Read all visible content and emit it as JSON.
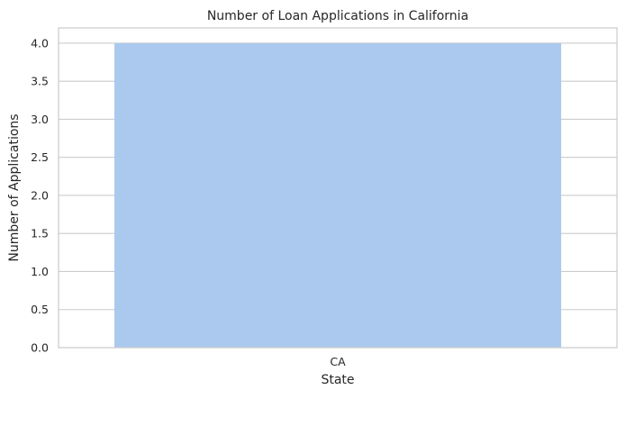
{
  "chart_data": {
    "type": "bar",
    "title": "Number of Loan Applications in California",
    "xlabel": "State",
    "ylabel": "Number of Applications",
    "categories": [
      "CA"
    ],
    "values": [
      4.0
    ],
    "ylim": [
      0,
      4.2
    ],
    "yticks": [
      "0.0",
      "0.5",
      "1.0",
      "1.5",
      "2.0",
      "2.5",
      "3.0",
      "3.5",
      "4.0"
    ],
    "grid": true,
    "bar_color": "#abc9ee",
    "grid_color": "#cccccc",
    "frame_color": "#cccccc"
  }
}
